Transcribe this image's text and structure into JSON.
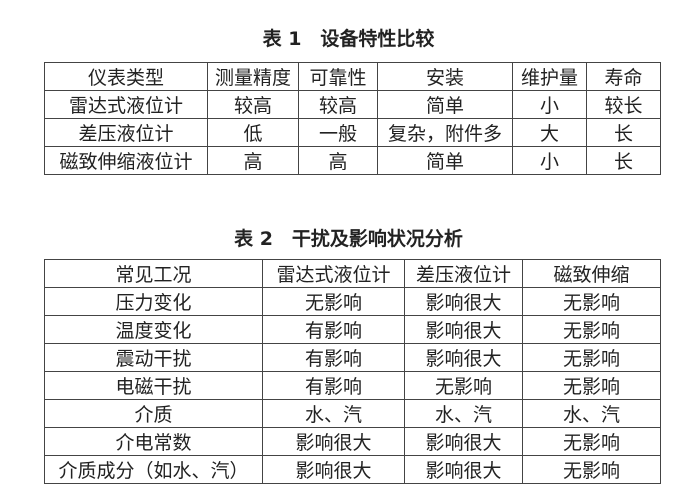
{
  "table1": {
    "title": "表 1　设备特性比较",
    "headers": [
      "仪表类型",
      "测量精度",
      "可靠性",
      "安装",
      "维护量",
      "寿命"
    ],
    "rows": [
      [
        "雷达式液位计",
        "较高",
        "较高",
        "简单",
        "小",
        "较长"
      ],
      [
        "差压液位计",
        "低",
        "一般",
        "复杂，附件多",
        "大",
        "长"
      ],
      [
        "磁致伸缩液位计",
        "高",
        "高",
        "简单",
        "小",
        "长"
      ]
    ]
  },
  "table2": {
    "title": "表 2　干扰及影响状况分析",
    "headers": [
      "常见工况",
      "雷达式液位计",
      "差压液位计",
      "磁致伸缩"
    ],
    "rows": [
      [
        "压力变化",
        "无影响",
        "影响很大",
        "无影响"
      ],
      [
        "温度变化",
        "有影响",
        "影响很大",
        "无影响"
      ],
      [
        "震动干扰",
        "有影响",
        "影响很大",
        "无影响"
      ],
      [
        "电磁干扰",
        "有影响",
        "无影响",
        "无影响"
      ],
      [
        "介质",
        "水、汽",
        "水、汽",
        "水、汽"
      ],
      [
        "介电常数",
        "影响很大",
        "影响很大",
        "无影响"
      ],
      [
        "介质成分（如水、汽）",
        "影响很大",
        "影响很大",
        "无影响"
      ]
    ]
  }
}
